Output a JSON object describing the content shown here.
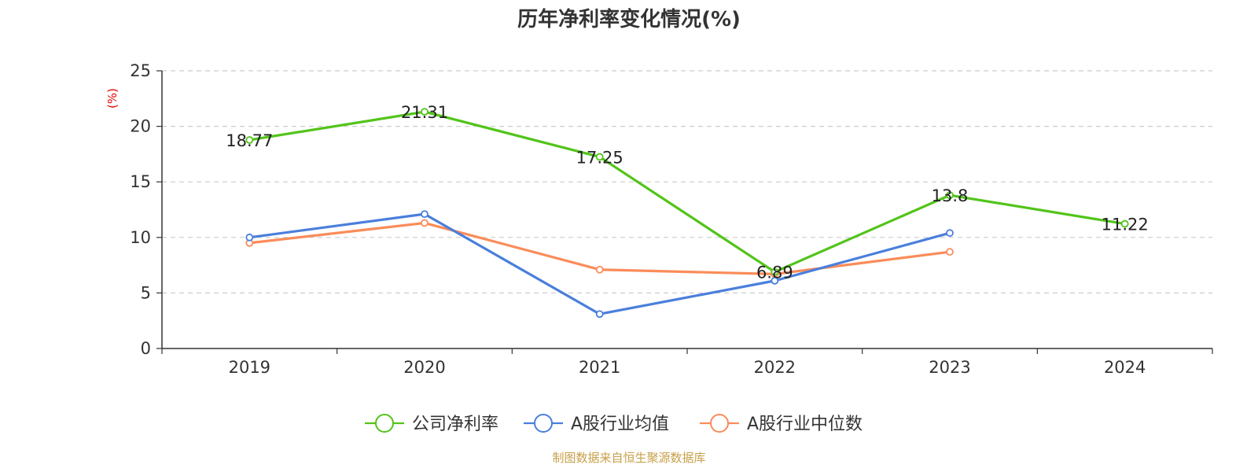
{
  "chart_data": {
    "type": "line",
    "title": "历年净利率变化情况(%)",
    "ylabel": "(%)",
    "xlabel": "",
    "categories": [
      "2019",
      "2020",
      "2021",
      "2022",
      "2023",
      "2024"
    ],
    "ylim": [
      0,
      25
    ],
    "yticks": [
      0,
      5,
      10,
      15,
      20,
      25
    ],
    "grid": true,
    "legend_position": "bottom",
    "series": [
      {
        "name": "公司净利率",
        "color": "#52c41a",
        "values": [
          18.77,
          21.31,
          17.25,
          6.89,
          13.8,
          11.22
        ],
        "labels": [
          "18.77",
          "21.31",
          "17.25",
          "6.89",
          "13.8",
          "11.22"
        ],
        "show_labels": true
      },
      {
        "name": "A股行业均值",
        "color": "#4a7fdc",
        "values": [
          10.0,
          12.1,
          3.1,
          6.1,
          10.4,
          null
        ],
        "show_labels": false
      },
      {
        "name": "A股行业中位数",
        "color": "#fa8c5a",
        "values": [
          9.5,
          11.3,
          7.1,
          6.7,
          8.7,
          null
        ],
        "show_labels": false
      }
    ],
    "source": "制图数据来自恒生聚源数据库",
    "colors": {
      "axis": "#333333",
      "grid": "#cccccc",
      "unit_label": "#e60000",
      "source": "#c8a04a"
    }
  }
}
